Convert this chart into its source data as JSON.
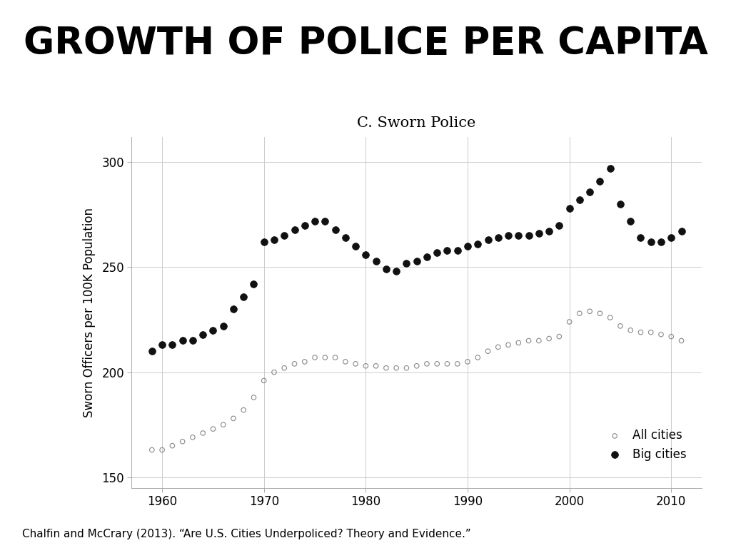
{
  "title": "GROWTH OF POLICE PER CAPITA",
  "subtitle": "C. Sworn Police",
  "ylabel": "Sworn Officers per 100K Population",
  "footnote": "Chalfin and McCrary (2013). “Are U.S. Cities Underpoliced? Theory and Evidence.”",
  "xlim": [
    1957,
    2013
  ],
  "ylim": [
    145,
    312
  ],
  "yticks": [
    150,
    200,
    250,
    300
  ],
  "xticks": [
    1960,
    1970,
    1980,
    1990,
    2000,
    2010
  ],
  "all_cities": {
    "years": [
      1959,
      1960,
      1961,
      1962,
      1963,
      1964,
      1965,
      1966,
      1967,
      1968,
      1969,
      1970,
      1971,
      1972,
      1973,
      1974,
      1975,
      1976,
      1977,
      1978,
      1979,
      1980,
      1981,
      1982,
      1983,
      1984,
      1985,
      1986,
      1987,
      1988,
      1989,
      1990,
      1991,
      1992,
      1993,
      1994,
      1995,
      1996,
      1997,
      1998,
      1999,
      2000,
      2001,
      2002,
      2003,
      2004,
      2005,
      2006,
      2007,
      2008,
      2009,
      2010,
      2011
    ],
    "values": [
      163,
      163,
      165,
      167,
      169,
      171,
      173,
      175,
      178,
      182,
      188,
      196,
      200,
      202,
      204,
      205,
      207,
      207,
      207,
      205,
      204,
      203,
      203,
      202,
      202,
      202,
      203,
      204,
      204,
      204,
      204,
      205,
      207,
      210,
      212,
      213,
      214,
      215,
      215,
      216,
      217,
      224,
      228,
      229,
      228,
      226,
      222,
      220,
      219,
      219,
      218,
      217,
      215
    ]
  },
  "big_cities": {
    "years": [
      1959,
      1960,
      1961,
      1962,
      1963,
      1964,
      1965,
      1966,
      1967,
      1968,
      1969,
      1970,
      1971,
      1972,
      1973,
      1974,
      1975,
      1976,
      1977,
      1978,
      1979,
      1980,
      1981,
      1982,
      1983,
      1984,
      1985,
      1986,
      1987,
      1988,
      1989,
      1990,
      1991,
      1992,
      1993,
      1994,
      1995,
      1996,
      1997,
      1998,
      1999,
      2000,
      2001,
      2002,
      2003,
      2004,
      2005,
      2006,
      2007,
      2008,
      2009,
      2010,
      2011
    ],
    "values": [
      210,
      213,
      213,
      215,
      215,
      218,
      220,
      222,
      230,
      236,
      242,
      262,
      263,
      265,
      268,
      270,
      272,
      272,
      268,
      264,
      260,
      256,
      253,
      249,
      248,
      252,
      253,
      255,
      257,
      258,
      258,
      260,
      261,
      263,
      264,
      265,
      265,
      265,
      266,
      267,
      270,
      278,
      282,
      286,
      291,
      297,
      280,
      272,
      264,
      262,
      262,
      264,
      267
    ]
  },
  "all_cities_color": "#888888",
  "big_cities_color": "#111111",
  "background_color": "#ffffff",
  "grid_color": "#cccccc",
  "title_fontsize": 38,
  "subtitle_fontsize": 15,
  "ylabel_fontsize": 12,
  "tick_fontsize": 12,
  "legend_fontsize": 12,
  "footnote_fontsize": 11
}
